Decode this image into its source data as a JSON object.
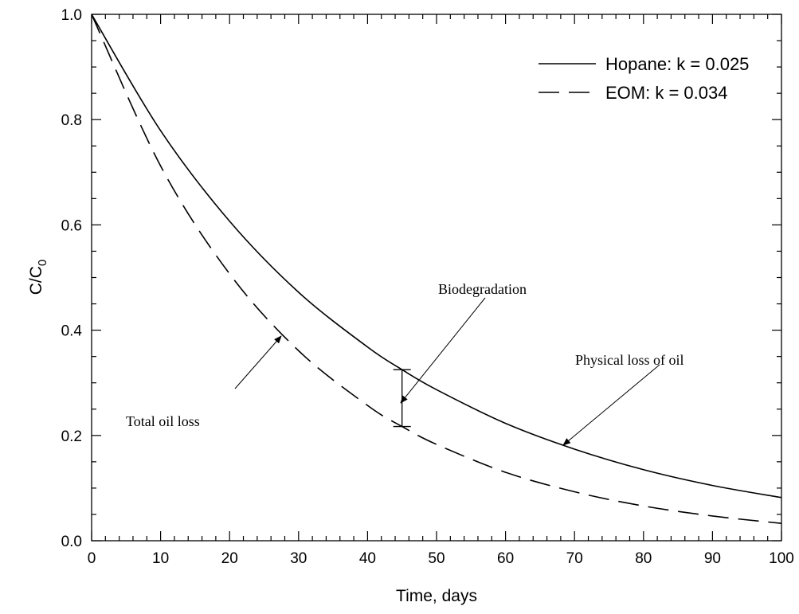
{
  "chart_data": {
    "type": "line",
    "xlabel": "Time, days",
    "ylabel": "C/C",
    "ylabel_subscript": "0",
    "xlim": [
      0,
      100
    ],
    "ylim": [
      0.0,
      1.0
    ],
    "x_ticks": [
      "0",
      "10",
      "20",
      "30",
      "40",
      "50",
      "60",
      "70",
      "80",
      "90",
      "100"
    ],
    "y_ticks": [
      "0.0",
      "0.2",
      "0.4",
      "0.6",
      "0.8",
      "1.0"
    ],
    "grid": false,
    "legend_position": "top-right",
    "series": [
      {
        "name": "Hopane: k = 0.025",
        "style": "solid",
        "x": [
          0,
          10,
          20,
          30,
          40,
          45,
          50,
          60,
          70,
          80,
          90,
          100
        ],
        "y": [
          1.0,
          0.779,
          0.607,
          0.472,
          0.368,
          0.325,
          0.287,
          0.223,
          0.174,
          0.135,
          0.105,
          0.082
        ]
      },
      {
        "name": "EOM: k = 0.034",
        "style": "dashed",
        "x": [
          0,
          10,
          20,
          30,
          40,
          45,
          50,
          60,
          70,
          80,
          90,
          100
        ],
        "y": [
          1.0,
          0.712,
          0.507,
          0.361,
          0.257,
          0.217,
          0.183,
          0.13,
          0.093,
          0.066,
          0.047,
          0.033
        ]
      }
    ],
    "annotations": {
      "biodegradation": "Biodegradation",
      "physical_loss": "Physical loss of oil",
      "total_loss": "Total oil loss"
    },
    "error_bar": {
      "x": 45,
      "y_low": 0.217,
      "y_high": 0.325
    }
  }
}
